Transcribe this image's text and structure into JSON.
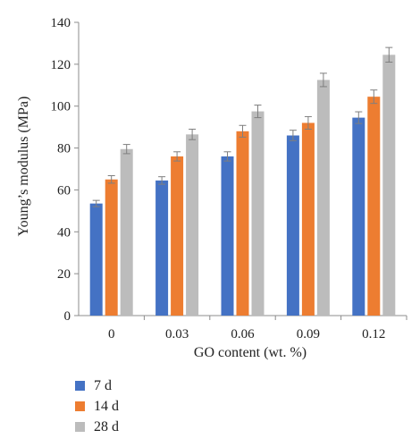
{
  "chart_data": {
    "type": "bar",
    "categories": [
      "0",
      "0.03",
      "0.06",
      "0.09",
      "0.12"
    ],
    "series": [
      {
        "name": "7 d",
        "color": "#4472c4",
        "values": [
          53.5,
          64.5,
          76,
          86,
          94.5
        ],
        "errors": [
          1.5,
          1.8,
          2.2,
          2.5,
          2.8
        ]
      },
      {
        "name": "14 d",
        "color": "#ed7d31",
        "values": [
          65,
          76,
          88,
          92,
          104.5
        ],
        "errors": [
          1.8,
          2.2,
          2.8,
          3.0,
          3.2
        ]
      },
      {
        "name": "28 d",
        "color": "#bcbcbc",
        "values": [
          79.5,
          86.5,
          97.5,
          112.5,
          124.5
        ],
        "errors": [
          2.2,
          2.5,
          3.0,
          3.2,
          3.5
        ]
      }
    ],
    "xlabel": "GO content (wt. %)",
    "ylabel": "Young’s modulus (MPa)",
    "ylim": [
      0,
      140
    ],
    "yticks": [
      0,
      20,
      40,
      60,
      80,
      100,
      120,
      140
    ],
    "grid": false,
    "legend_position": "bottom-left"
  }
}
